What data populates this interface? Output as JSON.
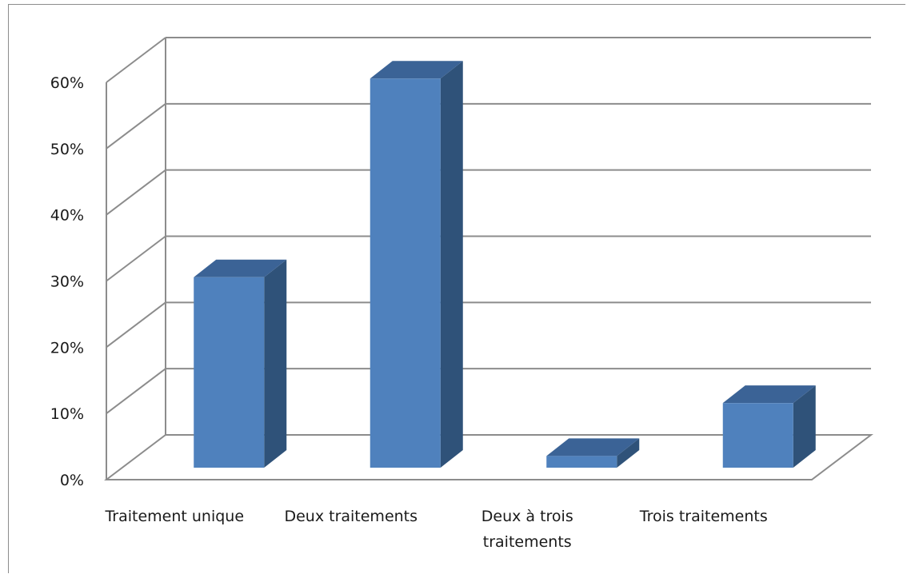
{
  "chart_data": {
    "type": "bar",
    "three_d": true,
    "categories": [
      "Traitement unique",
      "Deux traitements",
      "Deux à trois traitements",
      "Trois traitements"
    ],
    "category_label_lines": [
      [
        "Traitement unique"
      ],
      [
        "Deux traitements"
      ],
      [
        "Deux à trois",
        "traitements"
      ],
      [
        "Trois traitements"
      ]
    ],
    "values": [
      0.29,
      0.59,
      0.02,
      0.1
    ],
    "y_ticks": [
      "0%",
      "10%",
      "20%",
      "30%",
      "40%",
      "50%",
      "60%"
    ],
    "ylim": [
      0,
      0.6
    ],
    "grid": true,
    "legend": "none",
    "colors": {
      "bar_front": "#4f81bd",
      "bar_side": "#2f5279",
      "bar_top": "#3b6396",
      "gridline": "#8c8c8c",
      "axis": "#8c8c8c"
    }
  }
}
